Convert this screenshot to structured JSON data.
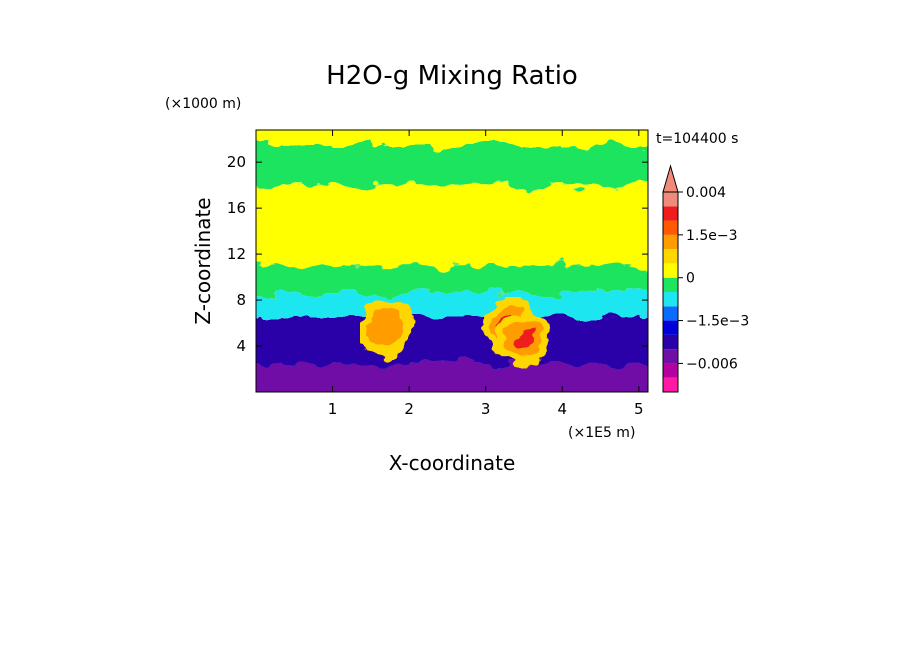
{
  "chart_data": {
    "type": "heatmap",
    "title": "H2O-g Mixing Ratio",
    "time_label": "t=104400 s",
    "xlabel": "X-coordinate",
    "ylabel": "Z-coordinate",
    "x_unit": "(×1E5 m)",
    "y_unit": "(×1000 m)",
    "xlim": [
      0,
      5.12
    ],
    "ylim": [
      0,
      22.8
    ],
    "x_ticks": [
      1,
      2,
      3,
      4,
      5
    ],
    "y_ticks": [
      4,
      8,
      12,
      16,
      20
    ],
    "grid": false,
    "legend": "colorbar-right",
    "colorbar": {
      "levels": [
        {
          "value": -0.009,
          "color": "#ff1aa6"
        },
        {
          "value": -0.006,
          "color": "#b3009e"
        },
        {
          "value": -0.003,
          "color": "#6f0fa6"
        },
        {
          "value": -0.002,
          "color": "#2a00a8"
        },
        {
          "value": -0.0015,
          "color": "#0000d8"
        },
        {
          "value": -0.001,
          "color": "#0a6cff"
        },
        {
          "value": -0.0005,
          "color": "#1ee6f0"
        },
        {
          "value": 0,
          "color": "#1fe45f"
        },
        {
          "value": 0.0005,
          "color": "#ffff00"
        },
        {
          "value": 0.001,
          "color": "#ffd700"
        },
        {
          "value": 0.0015,
          "color": "#ff9c00"
        },
        {
          "value": 0.002,
          "color": "#ff5a00"
        },
        {
          "value": 0.003,
          "color": "#ee1c1c"
        },
        {
          "value": 0.004,
          "color": "#f08a7a"
        }
      ],
      "tick_labels": [
        "0.004",
        "1.5e−3",
        "0",
        "−1.5e−3",
        "−0.006"
      ]
    },
    "layers_by_z": [
      {
        "z_range": [
          0,
          2.4
        ],
        "dominant": "#6f0fa6"
      },
      {
        "z_range": [
          2.4,
          6.5
        ],
        "dominant": "#2a00a8"
      },
      {
        "z_range": [
          6.5,
          8.5
        ],
        "dominant": "#1ee6f0"
      },
      {
        "z_range": [
          8.5,
          11
        ],
        "dominant": "#1fe45f"
      },
      {
        "z_range": [
          11,
          18
        ],
        "dominant": "#ffff00"
      },
      {
        "z_range": [
          18,
          21.5
        ],
        "dominant": "#1fe45f"
      },
      {
        "z_range": [
          21.5,
          22.8
        ],
        "dominant": "#ffff00"
      }
    ],
    "moist_plumes": [
      {
        "x": 1.7,
        "z": 5.5,
        "peak_color": "#ff9c00"
      },
      {
        "x": 3.3,
        "z": 5.8,
        "peak_color": "#ee1c1c"
      },
      {
        "x": 3.5,
        "z": 4.5,
        "peak_color": "#ee1c1c"
      }
    ]
  }
}
